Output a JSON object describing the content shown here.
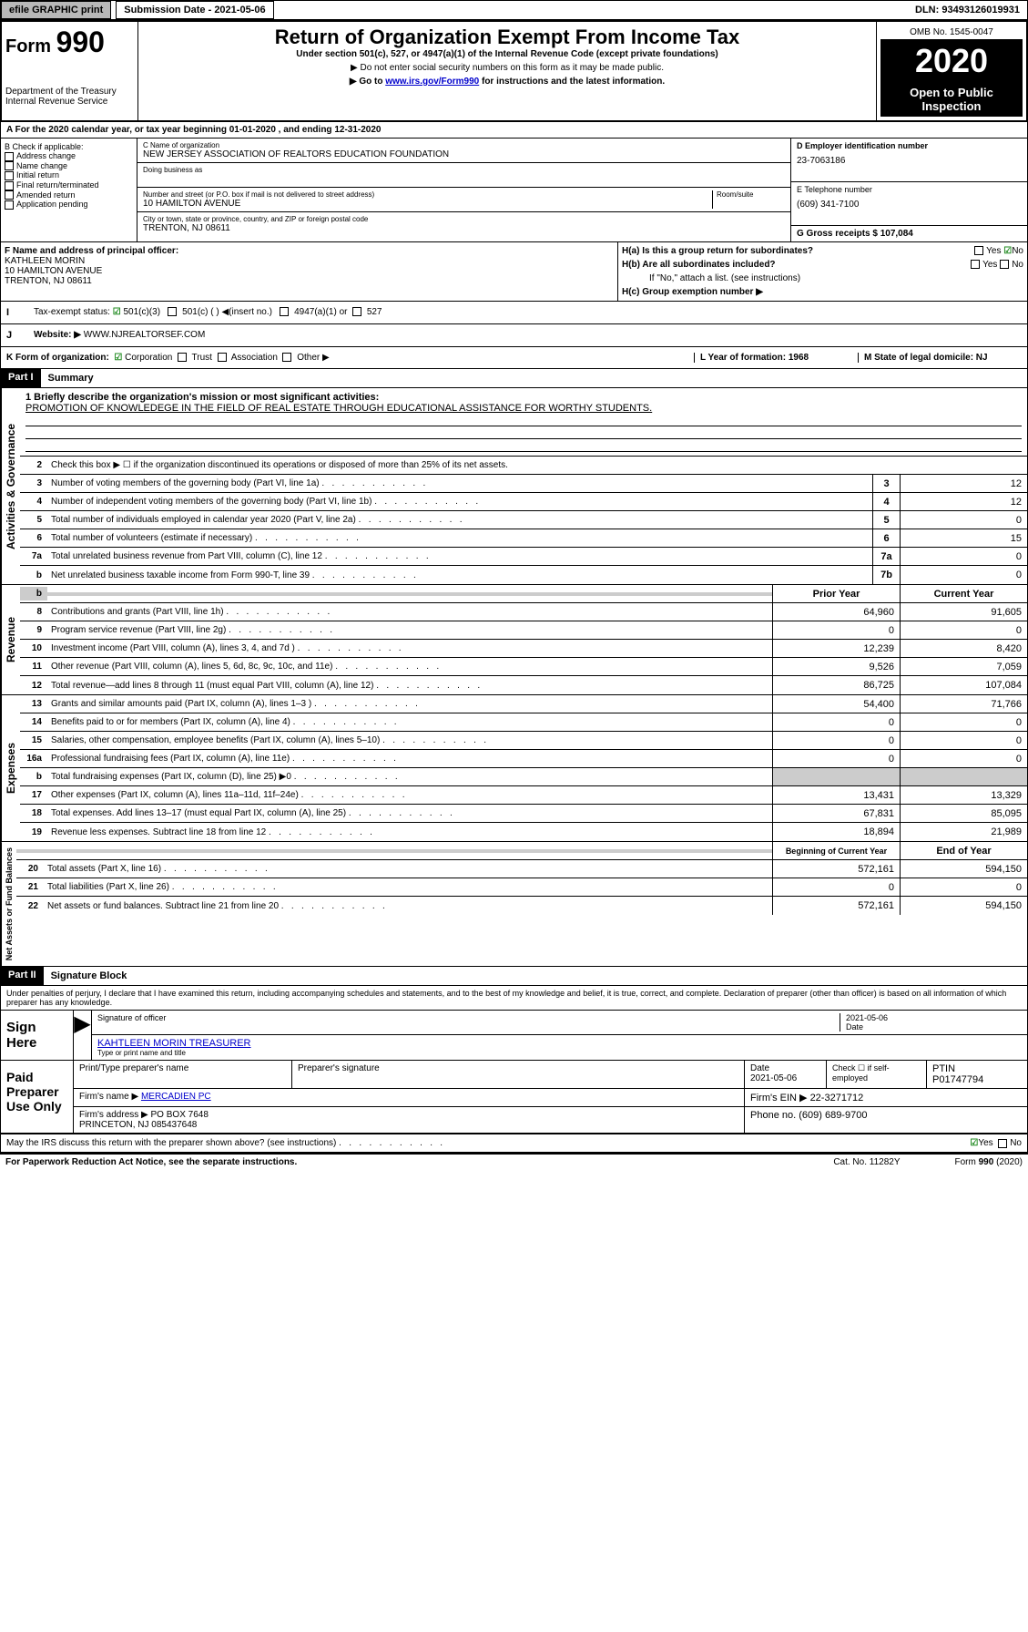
{
  "topbar": {
    "efile": "efile GRAPHIC print",
    "sub_label": "Submission Date - 2021-05-06",
    "dln": "DLN: 93493126019931"
  },
  "header": {
    "form": "Form",
    "form_num": "990",
    "title": "Return of Organization Exempt From Income Tax",
    "sub1": "Under section 501(c), 527, or 4947(a)(1) of the Internal Revenue Code (except private foundations)",
    "sub2": "▶ Do not enter social security numbers on this form as it may be made public.",
    "sub3_pre": "▶ Go to ",
    "sub3_link": "www.irs.gov/Form990",
    "sub3_post": " for instructions and the latest information.",
    "dept": "Department of the Treasury\nInternal Revenue Service",
    "omb": "OMB No. 1545-0047",
    "year": "2020",
    "open": "Open to Public Inspection"
  },
  "rowA": {
    "text": "A For the 2020 calendar year, or tax year beginning 01-01-2020    , and ending 12-31-2020"
  },
  "colB": {
    "hdr": "B Check if applicable:",
    "items": [
      "Address change",
      "Name change",
      "Initial return",
      "Final return/terminated",
      "Amended return",
      "Application pending"
    ]
  },
  "colC": {
    "name_lbl": "C Name of organization",
    "name": "NEW JERSEY ASSOCIATION OF REALTORS EDUCATION FOUNDATION",
    "dba_lbl": "Doing business as",
    "dba": "",
    "addr_lbl": "Number and street (or P.O. box if mail is not delivered to street address)",
    "room_lbl": "Room/suite",
    "addr": "10 HAMILTON AVENUE",
    "city_lbl": "City or town, state or province, country, and ZIP or foreign postal code",
    "city": "TRENTON, NJ  08611"
  },
  "colD": {
    "lbl": "D Employer identification number",
    "val": "23-7063186"
  },
  "colE": {
    "lbl": "E Telephone number",
    "val": "(609) 341-7100"
  },
  "colG": {
    "lbl": "G Gross receipts $ 107,084"
  },
  "colF": {
    "lbl": "F  Name and address of principal officer:",
    "val": "KATHLEEN MORIN\n10 HAMILTON AVENUE\nTRENTON, NJ  08611"
  },
  "colH": {
    "a": "H(a)  Is this a group return for subordinates?",
    "a_yes": "Yes",
    "a_no": "No",
    "b": "H(b)  Are all subordinates included?",
    "b_yes": "Yes",
    "b_no": "No",
    "b_note": "If \"No,\" attach a list. (see instructions)",
    "c": "H(c)  Group exemption number ▶"
  },
  "rowI": {
    "lbl": "Tax-exempt status:",
    "o1": "501(c)(3)",
    "o2": "501(c) (  ) ◀(insert no.)",
    "o3": "4947(a)(1) or",
    "o4": "527"
  },
  "rowJ": {
    "lbl": "Website: ▶",
    "val": "WWW.NJREALTORSEF.COM"
  },
  "rowK": {
    "lbl": "K Form of organization:",
    "o1": "Corporation",
    "o2": "Trust",
    "o3": "Association",
    "o4": "Other ▶",
    "l": "L Year of formation: 1968",
    "m": "M State of legal domicile: NJ"
  },
  "part1": {
    "hdr": "Part I",
    "title": "Summary"
  },
  "summary": {
    "l1_lbl": "1  Briefly describe the organization's mission or most significant activities:",
    "l1_val": "PROMOTION OF KNOWLEDEGE IN THE FIELD OF REAL ESTATE THROUGH EDUCATIONAL ASSISTANCE FOR WORTHY STUDENTS.",
    "l2": "Check this box ▶ ☐  if the organization discontinued its operations or disposed of more than 25% of its net assets.",
    "lines_gov": [
      {
        "n": "3",
        "t": "Number of voting members of the governing body (Part VI, line 1a)",
        "box": "3",
        "v": "12"
      },
      {
        "n": "4",
        "t": "Number of independent voting members of the governing body (Part VI, line 1b)",
        "box": "4",
        "v": "12"
      },
      {
        "n": "5",
        "t": "Total number of individuals employed in calendar year 2020 (Part V, line 2a)",
        "box": "5",
        "v": "0"
      },
      {
        "n": "6",
        "t": "Total number of volunteers (estimate if necessary)",
        "box": "6",
        "v": "15"
      },
      {
        "n": "7a",
        "t": "Total unrelated business revenue from Part VIII, column (C), line 12",
        "box": "7a",
        "v": "0"
      },
      {
        "n": "b",
        "t": "Net unrelated business taxable income from Form 990-T, line 39",
        "box": "7b",
        "v": "0"
      }
    ],
    "col_hdr": {
      "n": "b",
      "prior": "Prior Year",
      "curr": "Current Year"
    },
    "lines_rev": [
      {
        "n": "8",
        "t": "Contributions and grants (Part VIII, line 1h)",
        "p": "64,960",
        "c": "91,605"
      },
      {
        "n": "9",
        "t": "Program service revenue (Part VIII, line 2g)",
        "p": "0",
        "c": "0"
      },
      {
        "n": "10",
        "t": "Investment income (Part VIII, column (A), lines 3, 4, and 7d )",
        "p": "12,239",
        "c": "8,420"
      },
      {
        "n": "11",
        "t": "Other revenue (Part VIII, column (A), lines 5, 6d, 8c, 9c, 10c, and 11e)",
        "p": "9,526",
        "c": "7,059"
      },
      {
        "n": "12",
        "t": "Total revenue—add lines 8 through 11 (must equal Part VIII, column (A), line 12)",
        "p": "86,725",
        "c": "107,084"
      }
    ],
    "lines_exp": [
      {
        "n": "13",
        "t": "Grants and similar amounts paid (Part IX, column (A), lines 1–3 )",
        "p": "54,400",
        "c": "71,766"
      },
      {
        "n": "14",
        "t": "Benefits paid to or for members (Part IX, column (A), line 4)",
        "p": "0",
        "c": "0"
      },
      {
        "n": "15",
        "t": "Salaries, other compensation, employee benefits (Part IX, column (A), lines 5–10)",
        "p": "0",
        "c": "0"
      },
      {
        "n": "16a",
        "t": "Professional fundraising fees (Part IX, column (A), line 11e)",
        "p": "0",
        "c": "0"
      },
      {
        "n": "b",
        "t": "Total fundraising expenses (Part IX, column (D), line 25) ▶0",
        "p": "",
        "c": "",
        "gray": true
      },
      {
        "n": "17",
        "t": "Other expenses (Part IX, column (A), lines 11a–11d, 11f–24e)",
        "p": "13,431",
        "c": "13,329"
      },
      {
        "n": "18",
        "t": "Total expenses. Add lines 13–17 (must equal Part IX, column (A), line 25)",
        "p": "67,831",
        "c": "85,095"
      },
      {
        "n": "19",
        "t": "Revenue less expenses. Subtract line 18 from line 12",
        "p": "18,894",
        "c": "21,989"
      }
    ],
    "net_hdr": {
      "prior": "Beginning of Current Year",
      "curr": "End of Year"
    },
    "lines_net": [
      {
        "n": "20",
        "t": "Total assets (Part X, line 16)",
        "p": "572,161",
        "c": "594,150"
      },
      {
        "n": "21",
        "t": "Total liabilities (Part X, line 26)",
        "p": "0",
        "c": "0"
      },
      {
        "n": "22",
        "t": "Net assets or fund balances. Subtract line 21 from line 20",
        "p": "572,161",
        "c": "594,150"
      }
    ],
    "vert_gov": "Activities & Governance",
    "vert_rev": "Revenue",
    "vert_exp": "Expenses",
    "vert_net": "Net Assets or Fund Balances"
  },
  "part2": {
    "hdr": "Part II",
    "title": "Signature Block",
    "decl": "Under penalties of perjury, I declare that I have examined this return, including accompanying schedules and statements, and to the best of my knowledge and belief, it is true, correct, and complete. Declaration of preparer (other than officer) is based on all information of which preparer has any knowledge."
  },
  "sign": {
    "lbl": "Sign Here",
    "sig_lbl": "Signature of officer",
    "date": "2021-05-06",
    "date_lbl": "Date",
    "name": "KAHTLEEN MORIN  TREASURER",
    "name_lbl": "Type or print name and title"
  },
  "paid": {
    "lbl": "Paid Preparer Use Only",
    "h1": "Print/Type preparer's name",
    "h2": "Preparer's signature",
    "h3": "Date",
    "h3v": "2021-05-06",
    "h4": "Check ☐ if self-employed",
    "h5": "PTIN",
    "h5v": "P01747794",
    "firm_lbl": "Firm's name    ▶",
    "firm": "MERCADIEN PC",
    "ein_lbl": "Firm's EIN ▶",
    "ein": "22-3271712",
    "addr_lbl": "Firm's address ▶",
    "addr": "PO BOX 7648\nPRINCETON, NJ  085437648",
    "ph_lbl": "Phone no.",
    "ph": "(609) 689-9700"
  },
  "discuss": {
    "txt": "May the IRS discuss this return with the preparer shown above? (see instructions)",
    "yes": "Yes",
    "no": "No"
  },
  "footer": {
    "l": "For Paperwork Reduction Act Notice, see the separate instructions.",
    "m": "Cat. No. 11282Y",
    "r": "Form 990 (2020)"
  }
}
